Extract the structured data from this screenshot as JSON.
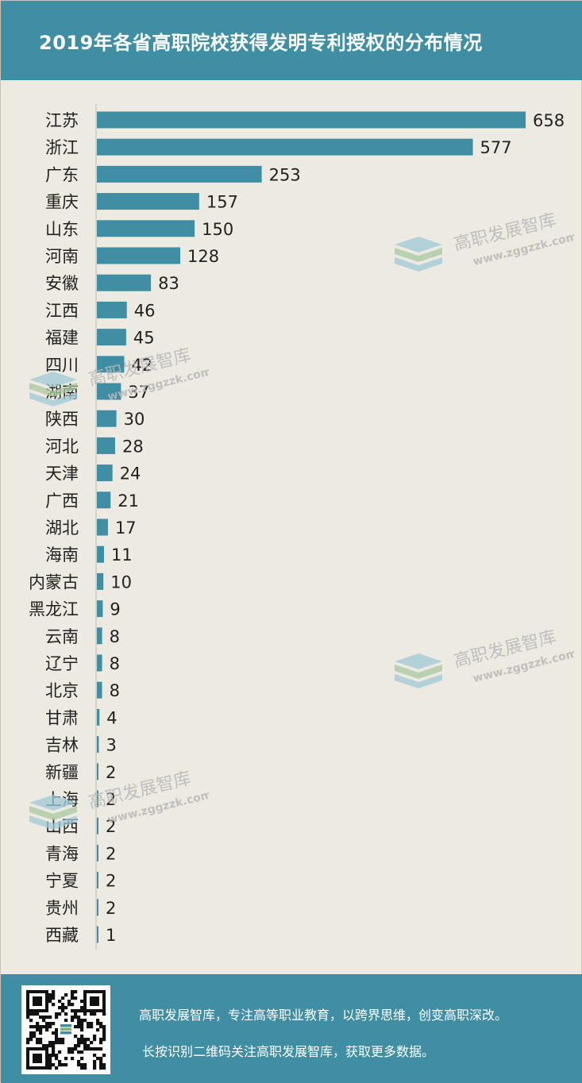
{
  "title": "2019年各省高职院校获得发明专利授权的分布情况",
  "colors": {
    "accent": "#3f8ea3",
    "bar": "#3f8ea3",
    "background": "#edeae2",
    "text": "#222222",
    "footer_text": "#ffffff"
  },
  "chart_data": {
    "type": "bar",
    "orientation": "horizontal",
    "title": "2019年各省高职院校获得发明专利授权的分布情况",
    "categories": [
      "江苏",
      "浙江",
      "广东",
      "重庆",
      "山东",
      "河南",
      "安徽",
      "江西",
      "福建",
      "四川",
      "湖南",
      "陕西",
      "河北",
      "天津",
      "广西",
      "湖北",
      "海南",
      "内蒙古",
      "黑龙江",
      "云南",
      "辽宁",
      "北京",
      "甘肃",
      "吉林",
      "新疆",
      "上海",
      "山西",
      "青海",
      "宁夏",
      "贵州",
      "西藏"
    ],
    "values": [
      658,
      577,
      253,
      157,
      150,
      128,
      83,
      46,
      45,
      42,
      37,
      30,
      28,
      24,
      21,
      17,
      11,
      10,
      9,
      8,
      8,
      8,
      4,
      3,
      2,
      2,
      2,
      2,
      2,
      2,
      1
    ],
    "data_labels": true,
    "xlabel": "",
    "ylabel": "",
    "xlim": [
      0,
      658
    ],
    "grid": false,
    "legend": "none"
  },
  "watermark": {
    "name": "高职发展智库",
    "url": "www.zggzzk.com"
  },
  "footer": {
    "line1": "高职发展智库，专注高等职业教育，以跨界思维，创变高职深改。",
    "line2": "长按识别二维码关注高职发展智库，获取更多数据。"
  },
  "icons": {
    "qr": "qr-code-icon",
    "logo": "layered-books-logo-icon"
  }
}
